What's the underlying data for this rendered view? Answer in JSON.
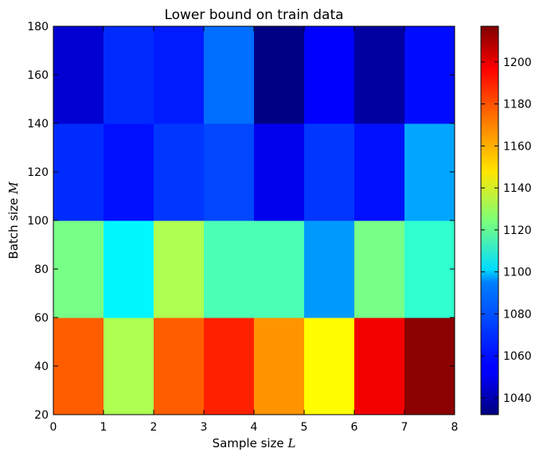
{
  "chart_data": {
    "type": "heatmap",
    "title": "Lower bound on train data",
    "xlabel": "Sample size",
    "xlabel_symbol": "L",
    "ylabel": "Batch size",
    "ylabel_symbol": "M",
    "x_edges": [
      0,
      1,
      2,
      3,
      4,
      5,
      6,
      7,
      8
    ],
    "y_edges": [
      20,
      60,
      100,
      140,
      180
    ],
    "xlim": [
      0,
      8
    ],
    "ylim": [
      20,
      180
    ],
    "xticks": [
      0,
      1,
      2,
      3,
      4,
      5,
      6,
      7,
      8
    ],
    "yticks": [
      20,
      40,
      60,
      80,
      100,
      120,
      140,
      160,
      180
    ],
    "rows_bottom_to_top": [
      [
        1177,
        1133,
        1177,
        1188,
        1167,
        1148,
        1196,
        1215
      ],
      [
        1123,
        1100,
        1133,
        1115,
        1115,
        1083,
        1123,
        1110
      ],
      [
        1063,
        1058,
        1065,
        1068,
        1052,
        1065,
        1058,
        1085
      ],
      [
        1047,
        1063,
        1060,
        1075,
        1033,
        1055,
        1038,
        1057
      ]
    ],
    "colormap": "jet",
    "colorbar": {
      "min": 1032,
      "max": 1217,
      "ticks": [
        1040,
        1060,
        1080,
        1100,
        1120,
        1140,
        1160,
        1180,
        1200
      ]
    },
    "grid": false
  }
}
